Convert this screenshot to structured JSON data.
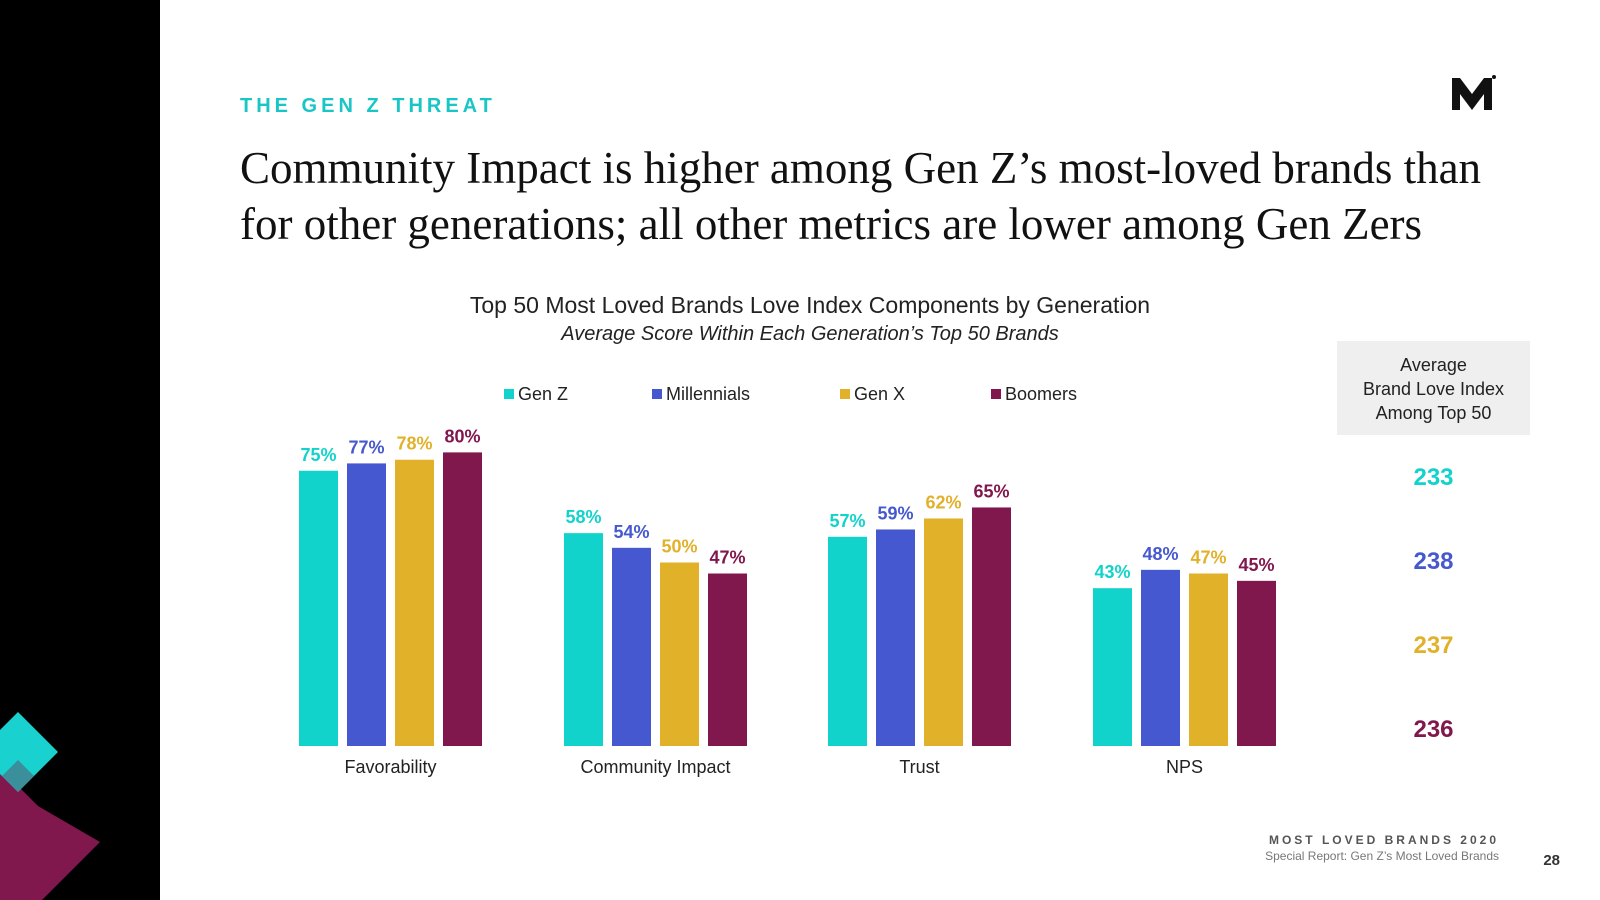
{
  "slide": {
    "kicker": "THE GEN Z THREAT",
    "headline_line1": "Community Impact is higher among Gen Z’s most-loved brands than",
    "headline_line2": "for other generations; all other metrics are lower among Gen Zers",
    "footer_brand": "MOST LOVED BRANDS 2020",
    "footer_subtitle": "Special Report: Gen Z’s Most Loved Brands",
    "page_number": "28",
    "logo_icon": "m-logo-icon",
    "sidebar_decoration": "diamond-shapes",
    "colors": {
      "accent": "#19c6c6",
      "sidebar": "#000000",
      "decor_cyan": "#19d1cf",
      "decor_purple": "#7e1a4e"
    }
  },
  "chart_data": {
    "type": "bar",
    "title": "Top 50 Most Loved Brands Love Index Components by Generation",
    "subtitle": "Average Score Within Each Generation’s Top 50 Brands",
    "categories": [
      "Favorability",
      "Community Impact",
      "Trust",
      "NPS"
    ],
    "series": [
      {
        "name": "Gen Z",
        "color": "#12d3cb",
        "values": [
          75,
          58,
          57,
          43
        ],
        "labels": [
          "75%",
          "58%",
          "57%",
          "43%"
        ],
        "avg_index": "233"
      },
      {
        "name": "Millennials",
        "color": "#4658cf",
        "values": [
          77,
          54,
          59,
          48
        ],
        "labels": [
          "77%",
          "54%",
          "59%",
          "48%"
        ],
        "avg_index": "238"
      },
      {
        "name": "Gen X",
        "color": "#e2b12a",
        "values": [
          78,
          50,
          62,
          47
        ],
        "labels": [
          "78%",
          "50%",
          "62%",
          "47%"
        ],
        "avg_index": "237"
      },
      {
        "name": "Boomers",
        "color": "#80174d",
        "values": [
          80,
          47,
          65,
          45
        ],
        "labels": [
          "80%",
          "47%",
          "65%",
          "45%"
        ],
        "avg_index": "236"
      }
    ],
    "ylim": [
      0,
      100
    ],
    "grid": false,
    "legend_position": "top",
    "avg_box_lines": [
      "Average",
      "Brand Love Index",
      "Among Top 50"
    ]
  }
}
